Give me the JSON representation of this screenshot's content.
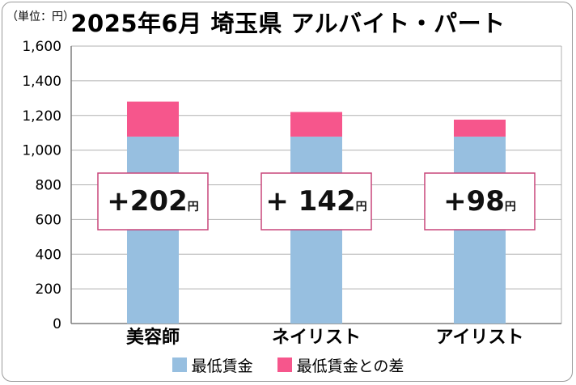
{
  "chart_data": {
    "type": "bar",
    "stacked": true,
    "title": "2025年6月 埼玉県 アルバイト・パート",
    "unit_label": "（単位：円）",
    "categories": [
      "美容師",
      "ネイリスト",
      "アイリスト"
    ],
    "series": [
      {
        "name": "最低賃金",
        "values": [
          1078,
          1078,
          1078
        ],
        "color": "#97bfe0"
      },
      {
        "name": "最低賃金との差",
        "values": [
          202,
          142,
          98
        ],
        "color": "#f6568c"
      }
    ],
    "callouts": [
      {
        "plus": "+",
        "value": "202",
        "unit": "円"
      },
      {
        "plus": "+ ",
        "value": "142",
        "unit": "円"
      },
      {
        "plus": "+",
        "value": "98",
        "unit": "円"
      }
    ],
    "ylim": [
      0,
      1600
    ],
    "yticks": [
      "0",
      "200",
      "400",
      "600",
      "800",
      "1,000",
      "1,200",
      "1,400",
      "1,600"
    ],
    "ytick_values": [
      0,
      200,
      400,
      600,
      800,
      1000,
      1200,
      1400,
      1600
    ],
    "grid": true,
    "legend_position": "bottom",
    "colors": {
      "grid": "#b0b0b0",
      "axis": "#7f7f7f",
      "callout_border": "#c9467a"
    }
  }
}
